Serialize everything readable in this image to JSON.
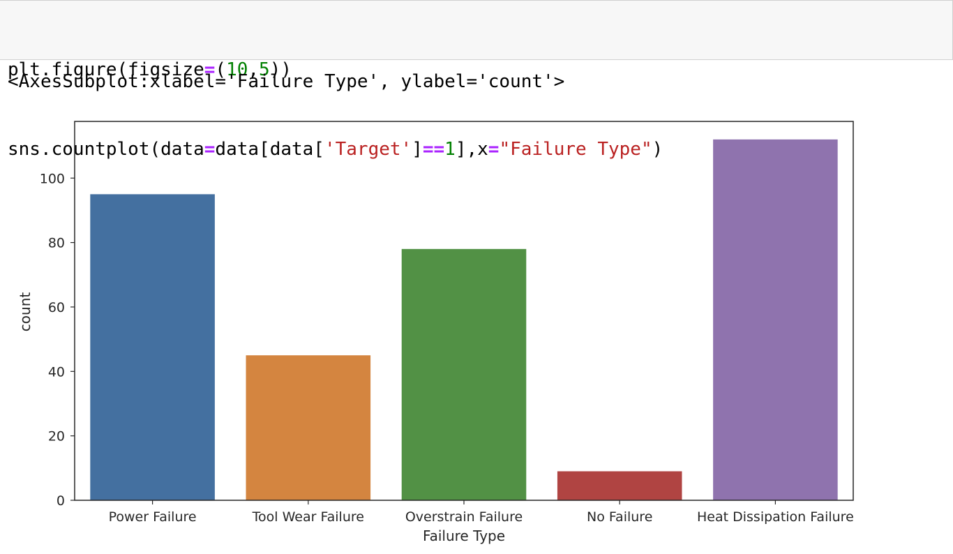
{
  "code_cell": {
    "line1": {
      "t1": "plt.figure(figsize",
      "t2": "=",
      "t3": "(",
      "t4": "10",
      "t5": ",",
      "t6": "5",
      "t7": "))"
    },
    "line2": {
      "t1": "sns.countplot(data",
      "t2": "=",
      "t3": "data[data[",
      "t4": "'Target'",
      "t5": "]",
      "t6": "==",
      "t7": "1",
      "t8": "],x",
      "t9": "=",
      "t10": "\"Failure Type\"",
      "t11": ")"
    }
  },
  "output_text": "<AxesSubplot:xlabel='Failure Type', ylabel='count'>",
  "colors": {
    "code_background": "#f7f7f7",
    "operator": "#aa22ff",
    "number": "#008000",
    "string": "#ba2121"
  },
  "chart_data": {
    "type": "bar",
    "categories": [
      "Power Failure",
      "Tool Wear Failure",
      "Overstrain Failure",
      "No Failure",
      "Heat Dissipation Failure"
    ],
    "values": [
      95,
      45,
      78,
      9,
      112
    ],
    "colors": [
      "#4470a0",
      "#d48540",
      "#529145",
      "#b04442",
      "#8f73ae"
    ],
    "xlabel": "Failure Type",
    "ylabel": "count",
    "ylim": [
      0,
      117.6
    ],
    "yticks": [
      0,
      20,
      40,
      60,
      80,
      100
    ],
    "grid": false,
    "legend": false
  }
}
